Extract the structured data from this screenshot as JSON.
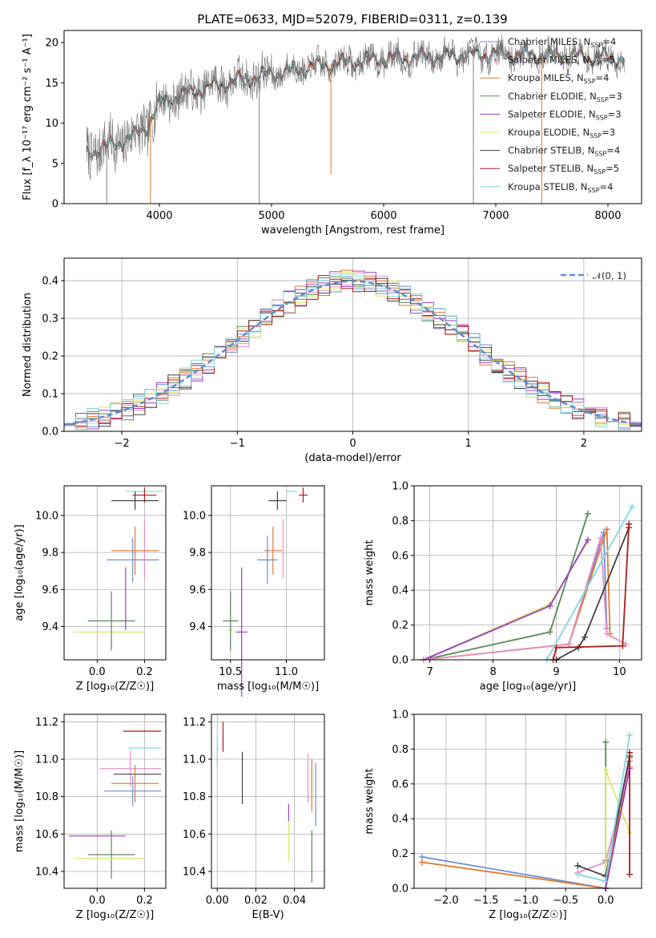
{
  "figure_title": "PLATE=0633, MJD=52079, FIBERID=0311, z=0.139",
  "colors": {
    "chabrier_miles": "#6b8fd6",
    "salpeter_miles": "#e88fc0",
    "kroupa_miles": "#e07a2e",
    "chabrier_elodie": "#5a8a5a",
    "salpeter_elodie": "#9b3cc4",
    "kroupa_elodie": "#d8e86a",
    "chabrier_stelib": "#404040",
    "salpeter_stelib": "#b01818",
    "kroupa_stelib": "#7fd8e0",
    "normal": "#5b8fd6"
  },
  "chart_data": [
    {
      "id": "spectrum",
      "type": "line",
      "xlabel": "wavelength [Angstrom, rest frame]",
      "ylabel": "Flux [f_λ 10⁻¹⁷ erg cm⁻² s⁻¹ A⁻¹]",
      "xlim": [
        3150,
        8300
      ],
      "ylim": [
        0,
        21.5
      ],
      "xticks": [
        4000,
        5000,
        6000,
        7000,
        8000
      ],
      "yticks": [
        0,
        5,
        10,
        15,
        20
      ],
      "grid": false,
      "legend_position": "top-right",
      "data_range": [
        3350,
        8150
      ],
      "continuum_points": [
        [
          3350,
          6.2
        ],
        [
          3500,
          7.0
        ],
        [
          3650,
          7.6
        ],
        [
          3800,
          8.6
        ],
        [
          3900,
          9.8
        ],
        [
          4000,
          12.5
        ],
        [
          4200,
          13.5
        ],
        [
          4500,
          14.7
        ],
        [
          4800,
          15.6
        ],
        [
          5100,
          16.3
        ],
        [
          5500,
          17.3
        ],
        [
          6000,
          18.0
        ],
        [
          6500,
          18.3
        ],
        [
          7000,
          18.6
        ],
        [
          7500,
          18.4
        ],
        [
          8150,
          18.0
        ]
      ],
      "dips": [
        [
          3530,
          0.0
        ],
        [
          3920,
          0.0
        ],
        [
          4890,
          0.0
        ],
        [
          5530,
          3.6
        ],
        [
          6800,
          0.0
        ],
        [
          7410,
          0.0
        ]
      ],
      "series": [
        {
          "name": "Chabrier MILES, N_SSP=4",
          "label": "Chabrier MILES, N",
          "sub": "SSP",
          "suffix": "=4",
          "color_key": "chabrier_miles"
        },
        {
          "name": "Salpeter MILES, N_SSP=5",
          "label": "Salpeter MILES, N",
          "sub": "SSP",
          "suffix": "=5",
          "color_key": "salpeter_miles"
        },
        {
          "name": "Kroupa MILES, N_SSP=4",
          "label": "Kroupa MILES, N",
          "sub": "SSP",
          "suffix": "=4",
          "color_key": "kroupa_miles"
        },
        {
          "name": "Chabrier ELODIE, N_SSP=3",
          "label": "Chabrier ELODIE, N",
          "sub": "SSP",
          "suffix": "=3",
          "color_key": "chabrier_elodie"
        },
        {
          "name": "Salpeter ELODIE, N_SSP=3",
          "label": "Salpeter ELODIE, N",
          "sub": "SSP",
          "suffix": "=3",
          "color_key": "salpeter_elodie"
        },
        {
          "name": "Kroupa ELODIE, N_SSP=3",
          "label": "Kroupa ELODIE, N",
          "sub": "SSP",
          "suffix": "=3",
          "color_key": "kroupa_elodie"
        },
        {
          "name": "Chabrier STELIB, N_SSP=4",
          "label": "Chabrier STELIB, N",
          "sub": "SSP",
          "suffix": "=4",
          "color_key": "chabrier_stelib"
        },
        {
          "name": "Salpeter STELIB, N_SSP=5",
          "label": "Salpeter STELIB, N",
          "sub": "SSP",
          "suffix": "=5",
          "color_key": "salpeter_stelib"
        },
        {
          "name": "Kroupa STELIB, N_SSP=4",
          "label": "Kroupa STELIB, N",
          "sub": "SSP",
          "suffix": "=4",
          "color_key": "kroupa_stelib"
        }
      ]
    },
    {
      "id": "residuals",
      "type": "line",
      "xlabel": "(data-model)/error",
      "ylabel": "Normed distribution",
      "xlim": [
        -2.5,
        2.5
      ],
      "ylim": [
        0,
        0.46
      ],
      "xticks": [
        -2,
        -1,
        0,
        1,
        2
      ],
      "yticks": [
        0.0,
        0.1,
        0.2,
        0.3,
        0.4
      ],
      "grid": true,
      "legend_position": "top-right",
      "legend": [
        {
          "label": "𝒩(0, 1)",
          "style": "dashed",
          "color_key": "normal"
        }
      ],
      "bin_width": 0.1,
      "histogram_series": [
        "chabrier_miles",
        "salpeter_miles",
        "kroupa_miles",
        "chabrier_elodie",
        "salpeter_elodie",
        "kroupa_elodie",
        "chabrier_stelib",
        "salpeter_stelib",
        "kroupa_stelib"
      ]
    },
    {
      "id": "age_vs_z",
      "type": "scatter",
      "xlabel": "Z [log₁₀(Z/Z☉)]",
      "ylabel": "age [log₁₀(age/yr)]",
      "xlim": [
        -0.14,
        0.29
      ],
      "ylim": [
        9.22,
        10.16
      ],
      "xticks": [
        0.0,
        0.2
      ],
      "yticks": [
        9.4,
        9.6,
        9.8,
        10.0
      ],
      "grid": true,
      "points": [
        {
          "color_key": "kroupa_stelib",
          "x": 0.2,
          "xerr": 0.08,
          "y": 10.13,
          "yerr": 0.0
        },
        {
          "color_key": "salpeter_stelib",
          "x": 0.2,
          "xerr": 0.05,
          "y": 10.11,
          "yerr": 0.04
        },
        {
          "color_key": "chabrier_stelib",
          "x": 0.16,
          "xerr": 0.1,
          "y": 10.08,
          "yerr": 0.05
        },
        {
          "color_key": "salpeter_miles",
          "x": 0.2,
          "xerr": 0.0,
          "y": 9.82,
          "yerr": 0.16
        },
        {
          "color_key": "kroupa_miles",
          "x": 0.16,
          "xerr": 0.1,
          "y": 9.81,
          "yerr": 0.13
        },
        {
          "color_key": "chabrier_miles",
          "x": 0.15,
          "xerr": 0.11,
          "y": 9.76,
          "yerr": 0.12
        },
        {
          "color_key": "kroupa_elodie",
          "x": 0.05,
          "xerr": 0.15,
          "y": 9.37,
          "yerr": 0.0
        },
        {
          "color_key": "chabrier_elodie",
          "x": 0.06,
          "xerr": 0.1,
          "y": 9.43,
          "yerr": 0.16
        },
        {
          "color_key": "salpeter_elodie",
          "x": 0.12,
          "xerr": 0.0,
          "y": 9.55,
          "yerr": 0.17
        }
      ]
    },
    {
      "id": "age_vs_mass",
      "type": "scatter",
      "xlabel": "mass [log₁₀(M/M☉)]",
      "ylabel": "",
      "xlim": [
        10.33,
        11.34
      ],
      "ylim": [
        9.22,
        10.16
      ],
      "xticks": [
        10.5,
        11.0
      ],
      "yticks": [
        9.4,
        9.6,
        9.8,
        10.0
      ],
      "grid": true,
      "points": [
        {
          "color_key": "kroupa_stelib",
          "x": 11.05,
          "xerr": 0.05,
          "y": 10.13,
          "yerr": 0.0
        },
        {
          "color_key": "salpeter_stelib",
          "x": 11.15,
          "xerr": 0.04,
          "y": 10.11,
          "yerr": 0.04
        },
        {
          "color_key": "chabrier_stelib",
          "x": 10.92,
          "xerr": 0.08,
          "y": 10.08,
          "yerr": 0.05
        },
        {
          "color_key": "salpeter_miles",
          "x": 10.97,
          "xerr": 0.0,
          "y": 9.82,
          "yerr": 0.16
        },
        {
          "color_key": "kroupa_miles",
          "x": 10.88,
          "xerr": 0.08,
          "y": 9.81,
          "yerr": 0.13
        },
        {
          "color_key": "chabrier_miles",
          "x": 10.83,
          "xerr": 0.09,
          "y": 9.76,
          "yerr": 0.13
        },
        {
          "color_key": "kroupa_elodie",
          "x": 10.5,
          "xerr": 0.02,
          "y": 9.38,
          "yerr": 0.0
        },
        {
          "color_key": "chabrier_elodie",
          "x": 10.5,
          "xerr": 0.07,
          "y": 9.43,
          "yerr": 0.16
        },
        {
          "color_key": "salpeter_elodie",
          "x": 10.6,
          "xerr": 0.05,
          "y": 9.37,
          "yerr": 0.35
        }
      ]
    },
    {
      "id": "massweight_vs_age",
      "type": "line",
      "xlabel": "age [log₁₀(age/yr)]",
      "ylabel": "mass weight",
      "xlim": [
        6.75,
        10.35
      ],
      "ylim": [
        0,
        1.0
      ],
      "xticks": [
        7,
        8,
        9,
        10
      ],
      "yticks": [
        0.0,
        0.2,
        0.4,
        0.6,
        0.8,
        1.0
      ],
      "grid": true,
      "series": [
        {
          "color_key": "chabrier_elodie",
          "x": [
            6.9,
            8.9,
            9.5
          ],
          "y": [
            0.0,
            0.16,
            0.84
          ]
        },
        {
          "color_key": "kroupa_elodie",
          "x": [
            6.9,
            8.9,
            9.5
          ],
          "y": [
            0.0,
            0.32,
            0.68
          ]
        },
        {
          "color_key": "salpeter_elodie",
          "x": [
            6.9,
            8.9,
            9.5
          ],
          "y": [
            0.0,
            0.31,
            0.69
          ]
        },
        {
          "color_key": "chabrier_miles",
          "x": [
            6.9,
            9.2,
            9.75,
            9.8
          ],
          "y": [
            0.0,
            0.09,
            0.73,
            0.18
          ]
        },
        {
          "color_key": "kroupa_miles",
          "x": [
            6.9,
            9.2,
            9.8,
            9.85
          ],
          "y": [
            0.0,
            0.09,
            0.75,
            0.15
          ]
        },
        {
          "color_key": "salpeter_miles",
          "x": [
            6.9,
            9.2,
            9.7,
            9.8,
            10.1
          ],
          "y": [
            0.0,
            0.09,
            0.7,
            0.15,
            0.09
          ]
        },
        {
          "color_key": "chabrier_stelib",
          "x": [
            9.0,
            9.35,
            9.45,
            10.15
          ],
          "y": [
            0.0,
            0.07,
            0.13,
            0.76
          ]
        },
        {
          "color_key": "salpeter_stelib",
          "x": [
            8.95,
            9.0,
            10.05,
            10.15
          ],
          "y": [
            0.0,
            0.07,
            0.08,
            0.78
          ]
        },
        {
          "color_key": "kroupa_stelib",
          "x": [
            8.85,
            10.2
          ],
          "y": [
            0.0,
            0.88
          ]
        }
      ]
    },
    {
      "id": "mass_vs_z",
      "type": "scatter",
      "xlabel": "Z [log₁₀(Z/Z☉)]",
      "ylabel": "mass [log₁₀(M/M☉)]",
      "xlim": [
        -0.14,
        0.29
      ],
      "ylim": [
        10.31,
        11.24
      ],
      "xticks": [
        0.0,
        0.2
      ],
      "yticks": [
        10.4,
        10.6,
        10.8,
        11.0,
        11.2
      ],
      "grid": true,
      "points": [
        {
          "color_key": "salpeter_stelib",
          "x": 0.19,
          "xerr": 0.08,
          "y": 11.15,
          "yerr": 0.0
        },
        {
          "color_key": "kroupa_stelib",
          "x": 0.2,
          "xerr": 0.07,
          "y": 11.06,
          "yerr": 0.0
        },
        {
          "color_key": "salpeter_miles",
          "x": 0.14,
          "xerr": 0.13,
          "y": 10.95,
          "yerr": 0.1
        },
        {
          "color_key": "chabrier_stelib",
          "x": 0.17,
          "xerr": 0.1,
          "y": 10.92,
          "yerr": 0.0
        },
        {
          "color_key": "kroupa_miles",
          "x": 0.16,
          "xerr": 0.1,
          "y": 10.87,
          "yerr": 0.1
        },
        {
          "color_key": "chabrier_miles",
          "x": 0.15,
          "xerr": 0.12,
          "y": 10.83,
          "yerr": 0.08
        },
        {
          "color_key": "salpeter_elodie",
          "x": 0.0,
          "xerr": 0.12,
          "y": 10.59,
          "yerr": 0.0
        },
        {
          "color_key": "chabrier_elodie",
          "x": 0.06,
          "xerr": 0.1,
          "y": 10.49,
          "yerr": 0.13
        },
        {
          "color_key": "kroupa_elodie",
          "x": 0.05,
          "xerr": 0.15,
          "y": 10.47,
          "yerr": 0.0
        }
      ]
    },
    {
      "id": "mass_vs_ebv",
      "type": "scatter",
      "xlabel": "E(B-V)",
      "ylabel": "",
      "xlim": [
        -0.003,
        0.0555
      ],
      "ylim": [
        10.31,
        11.24
      ],
      "xticks": [
        0.0,
        0.02,
        0.04
      ],
      "yticks": [
        10.4,
        10.6,
        10.8,
        11.0,
        11.2
      ],
      "grid": true,
      "points": [
        {
          "color_key": "salpeter_stelib",
          "x": 0.003,
          "xerr": 0.0,
          "y": 11.12,
          "yerr": 0.08
        },
        {
          "color_key": "kroupa_stelib",
          "x": 0.0,
          "xerr": 0.0,
          "y": 11.04,
          "yerr": 0.07
        },
        {
          "color_key": "chabrier_stelib",
          "x": 0.013,
          "xerr": 0.0,
          "y": 10.9,
          "yerr": 0.14
        },
        {
          "color_key": "salpeter_miles",
          "x": 0.047,
          "xerr": 0.0,
          "y": 10.9,
          "yerr": 0.13
        },
        {
          "color_key": "kroupa_miles",
          "x": 0.049,
          "xerr": 0.0,
          "y": 10.86,
          "yerr": 0.14
        },
        {
          "color_key": "chabrier_miles",
          "x": 0.051,
          "xerr": 0.0,
          "y": 10.81,
          "yerr": 0.17
        },
        {
          "color_key": "salpeter_elodie",
          "x": 0.037,
          "xerr": 0.0,
          "y": 10.71,
          "yerr": 0.05
        },
        {
          "color_key": "kroupa_elodie",
          "x": 0.037,
          "xerr": 0.0,
          "y": 10.56,
          "yerr": 0.11
        },
        {
          "color_key": "chabrier_elodie",
          "x": 0.049,
          "xerr": 0.0,
          "y": 10.48,
          "yerr": 0.14
        }
      ]
    },
    {
      "id": "massweight_vs_z",
      "type": "line",
      "xlabel": "Z [log₁₀(Z/Z☉)]",
      "ylabel": "mass weight",
      "xlim": [
        -2.4,
        0.45
      ],
      "ylim": [
        0,
        1.0
      ],
      "xticks": [
        -2.0,
        -1.5,
        -1.0,
        -0.5,
        0.0
      ],
      "yticks": [
        0.0,
        0.2,
        0.4,
        0.6,
        0.8,
        1.0
      ],
      "grid": true,
      "series": [
        {
          "color_key": "chabrier_miles",
          "x": [
            -2.3,
            0.0,
            0.3
          ],
          "y": [
            0.18,
            0.0,
            0.73
          ]
        },
        {
          "color_key": "kroupa_miles",
          "x": [
            -2.3,
            0.0,
            0.3
          ],
          "y": [
            0.15,
            0.0,
            0.75
          ]
        },
        {
          "color_key": "salpeter_miles",
          "x": [
            -0.35,
            0.0,
            0.3
          ],
          "y": [
            0.09,
            0.15,
            0.7
          ]
        },
        {
          "color_key": "chabrier_elodie",
          "x": [
            0.0,
            0.0,
            0.0
          ],
          "y": [
            0.0,
            0.16,
            0.84
          ]
        },
        {
          "color_key": "kroupa_elodie",
          "x": [
            0.0,
            0.0,
            0.3
          ],
          "y": [
            0.0,
            0.68,
            0.32
          ]
        },
        {
          "color_key": "salpeter_elodie",
          "x": [
            0.0,
            0.3
          ],
          "y": [
            0.0,
            0.69
          ]
        },
        {
          "color_key": "chabrier_stelib",
          "x": [
            -0.35,
            0.0,
            0.3
          ],
          "y": [
            0.13,
            0.07,
            0.76
          ]
        },
        {
          "color_key": "salpeter_stelib",
          "x": [
            0.3,
            0.3
          ],
          "y": [
            0.08,
            0.78
          ]
        },
        {
          "color_key": "kroupa_stelib",
          "x": [
            -0.35,
            0.0,
            0.3
          ],
          "y": [
            0.08,
            0.04,
            0.88
          ]
        }
      ]
    }
  ]
}
